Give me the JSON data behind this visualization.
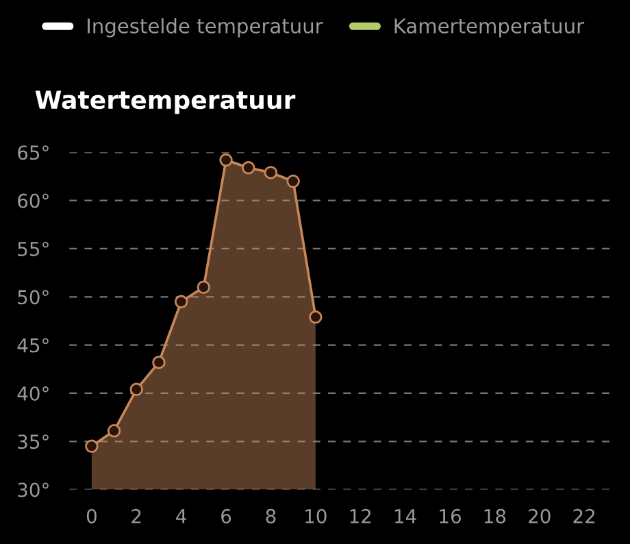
{
  "chart_data": {
    "type": "area",
    "title": "Watertemperatuur",
    "x": [
      0,
      1,
      2,
      3,
      4,
      5,
      6,
      7,
      8,
      9,
      10
    ],
    "series": [
      {
        "color": "#c8875a",
        "values": [
          34.5,
          36.1,
          40.4,
          43.2,
          49.5,
          51.0,
          64.2,
          63.4,
          62.9,
          62.0,
          47.9
        ]
      },
      {
        "name": "Ingestelde temperatuur",
        "type": "line",
        "color": "#ffffff",
        "values": [
          null,
          null,
          null,
          null,
          null,
          null,
          null,
          null,
          null,
          null,
          null
        ]
      },
      {
        "name": "Kamertemperatuur",
        "type": "line",
        "color": "#b5cc6a",
        "values": [
          null,
          null,
          null,
          null,
          null,
          null,
          null,
          null,
          null,
          null,
          null
        ]
      }
    ],
    "xlim": [
      -1,
      23.2
    ],
    "xticks": [
      0,
      2,
      4,
      6,
      8,
      10,
      12,
      14,
      16,
      18,
      20,
      22
    ],
    "ylim": [
      30,
      65
    ],
    "yticks": [
      {
        "value": 30,
        "label": "30°"
      },
      {
        "value": 35,
        "label": "35°"
      },
      {
        "value": 40,
        "label": "40°"
      },
      {
        "value": 45,
        "label": "45°"
      },
      {
        "value": 50,
        "label": "50°"
      },
      {
        "value": 55,
        "label": "55°"
      },
      {
        "value": 60,
        "label": "60°"
      },
      {
        "value": 65,
        "label": "65°"
      }
    ],
    "grid": "y",
    "legend": "top",
    "marker": "circle",
    "line_style": "solid"
  }
}
